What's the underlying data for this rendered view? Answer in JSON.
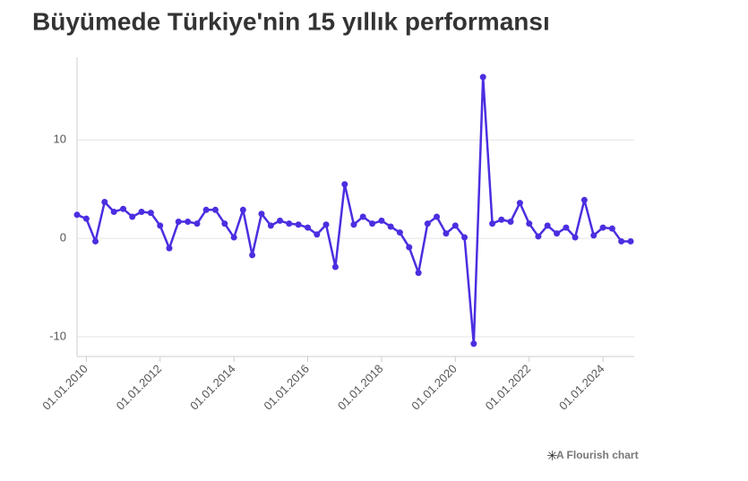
{
  "chart_data": {
    "type": "line",
    "title": "Büyümede Türkiye'nin 15 yıllık performansı",
    "footer": "A Flourish chart",
    "x": [
      "2009-10-01",
      "2010-01-01",
      "2010-04-01",
      "2010-07-01",
      "2010-10-01",
      "2011-01-01",
      "2011-04-01",
      "2011-07-01",
      "2011-10-01",
      "2012-01-01",
      "2012-04-01",
      "2012-07-01",
      "2012-10-01",
      "2013-01-01",
      "2013-04-01",
      "2013-07-01",
      "2013-10-01",
      "2014-01-01",
      "2014-04-01",
      "2014-07-01",
      "2014-10-01",
      "2015-01-01",
      "2015-04-01",
      "2015-07-01",
      "2015-10-01",
      "2016-01-01",
      "2016-04-01",
      "2016-07-01",
      "2016-10-01",
      "2017-01-01",
      "2017-04-01",
      "2017-07-01",
      "2017-10-01",
      "2018-01-01",
      "2018-04-01",
      "2018-07-01",
      "2018-10-01",
      "2019-01-01",
      "2019-04-01",
      "2019-07-01",
      "2019-10-01",
      "2020-01-01",
      "2020-04-01",
      "2020-07-01",
      "2020-10-01",
      "2021-01-01",
      "2021-04-01",
      "2021-07-01",
      "2021-10-01",
      "2022-01-01",
      "2022-04-01",
      "2022-07-01",
      "2022-10-01",
      "2023-01-01",
      "2023-04-01",
      "2023-07-01",
      "2023-10-01",
      "2024-01-01",
      "2024-04-01",
      "2024-07-01",
      "2024-10-01"
    ],
    "series": [
      {
        "color": "#4b2ee0",
        "values": [
          2.4,
          2.0,
          -0.3,
          3.7,
          2.7,
          3.0,
          2.2,
          2.7,
          2.6,
          1.3,
          -1.0,
          1.7,
          1.7,
          1.5,
          2.9,
          2.9,
          1.5,
          0.1,
          2.9,
          -1.7,
          2.5,
          1.3,
          1.8,
          1.5,
          1.4,
          1.1,
          0.4,
          1.4,
          -2.9,
          5.5,
          1.4,
          2.2,
          1.5,
          1.8,
          1.2,
          0.6,
          -0.9,
          -3.5,
          1.5,
          2.2,
          0.5,
          1.3,
          0.1,
          -10.7,
          16.4,
          1.5,
          1.9,
          1.7,
          3.6,
          1.5,
          0.2,
          1.3,
          0.5,
          1.1,
          0.1,
          3.9,
          0.3,
          1.1,
          1.0,
          -0.3,
          -0.3
        ]
      }
    ],
    "xlim": [
      "2009-10-01",
      "2024-10-01"
    ],
    "xticks": [
      {
        "value": "2010-01-01",
        "label": "01.01.2010"
      },
      {
        "value": "2012-01-01",
        "label": "01.01.2012"
      },
      {
        "value": "2014-01-01",
        "label": "01.01.2014"
      },
      {
        "value": "2016-01-01",
        "label": "01.01.2016"
      },
      {
        "value": "2018-01-01",
        "label": "01.01.2018"
      },
      {
        "value": "2020-01-01",
        "label": "01.01.2020"
      },
      {
        "value": "2022-01-01",
        "label": "01.01.2022"
      },
      {
        "value": "2024-01-01",
        "label": "01.01.2024"
      }
    ],
    "ylim": [
      -12,
      18.4
    ],
    "yticks": [
      -10,
      0,
      10
    ],
    "grid": true
  }
}
